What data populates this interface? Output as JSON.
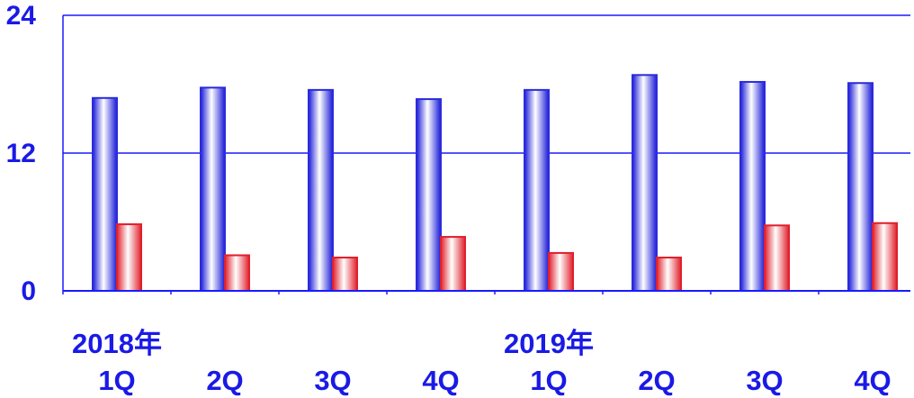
{
  "chart_data": {
    "type": "bar",
    "categories": [
      "1Q",
      "2Q",
      "3Q",
      "4Q",
      "1Q",
      "2Q",
      "3Q",
      "4Q"
    ],
    "year_groups": [
      {
        "label": "2018年",
        "start_index": 0
      },
      {
        "label": "2019年",
        "start_index": 4
      }
    ],
    "series": [
      {
        "values": [
          16.8,
          17.7,
          17.5,
          16.7,
          17.5,
          18.8,
          18.2,
          18.1
        ],
        "color": "#2b2bdc"
      },
      {
        "values": [
          5.8,
          3.1,
          2.9,
          4.7,
          3.3,
          2.9,
          5.7,
          5.9
        ],
        "color": "#e0202c"
      }
    ],
    "ylim": [
      0,
      24
    ],
    "yticks": [
      0,
      12,
      24
    ],
    "ytick_labels": [
      "0",
      "12",
      "24"
    ],
    "grid": true,
    "axis_color": "#1a1aff",
    "label_color": "#1a1ae6"
  }
}
